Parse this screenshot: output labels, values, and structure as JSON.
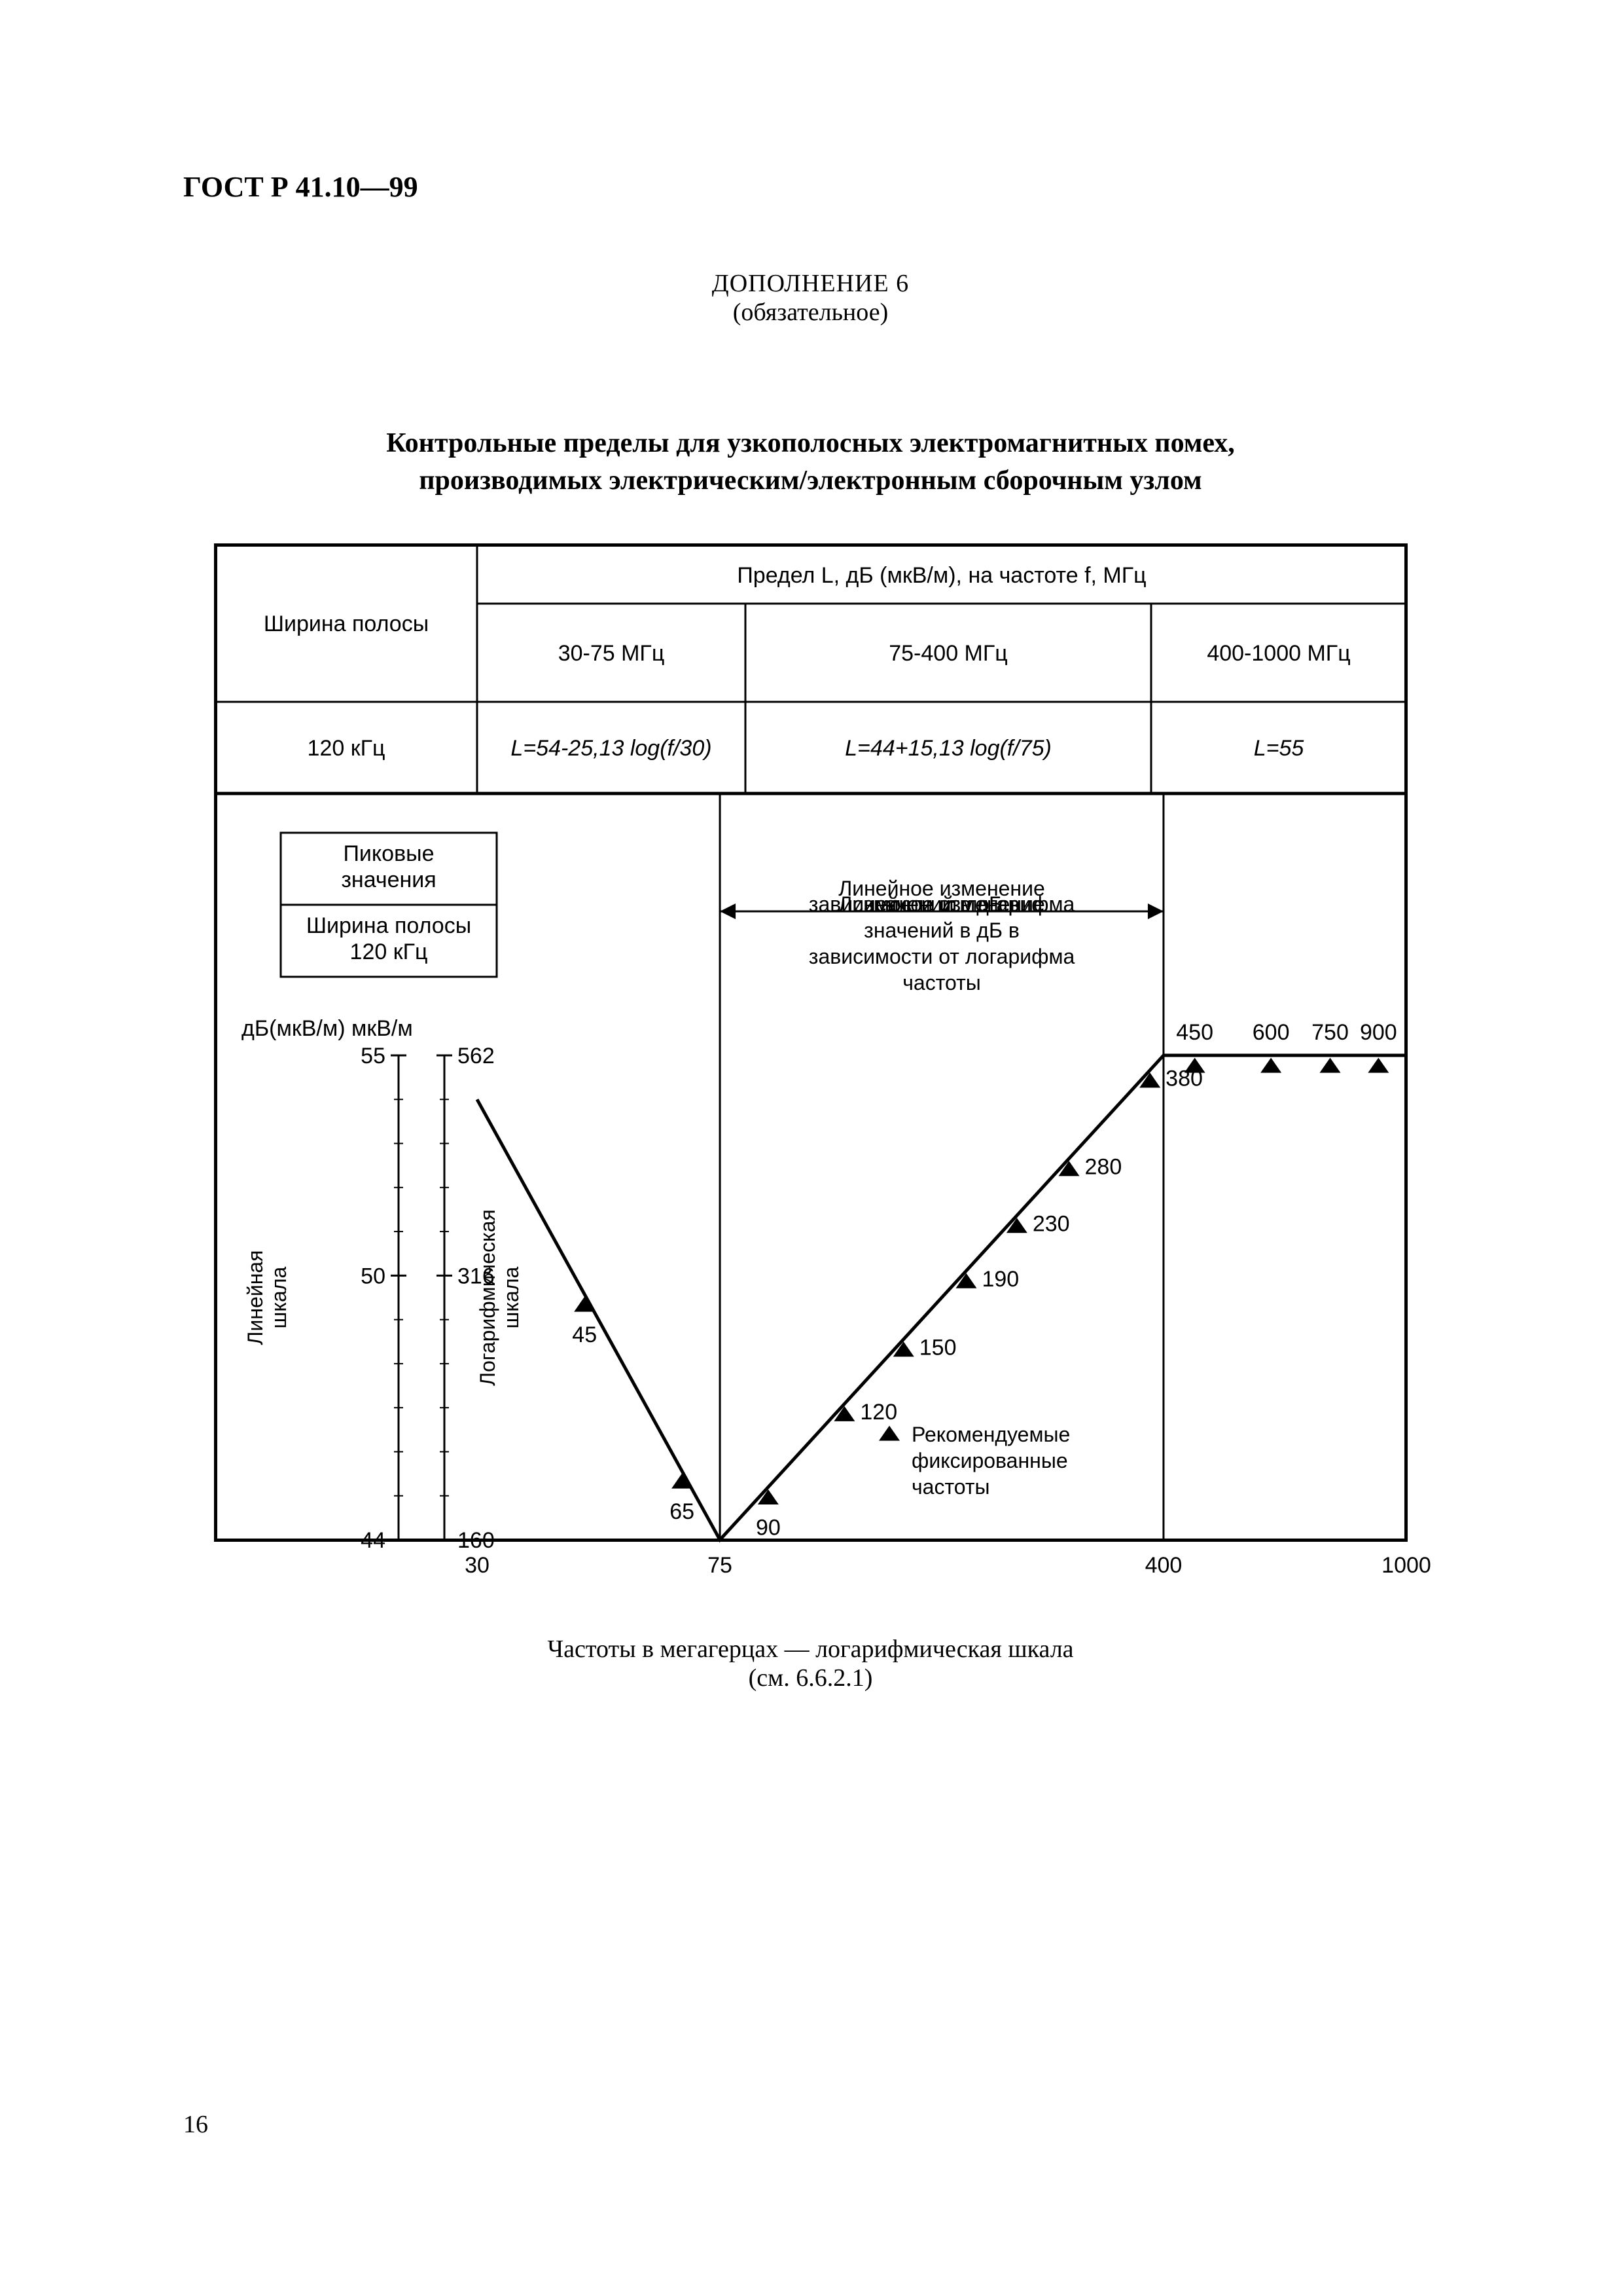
{
  "doc_id": "ГОСТ Р 41.10—99",
  "appendix_label": "ДОПОЛНЕНИЕ 6",
  "mandatory_label": "(обязательное)",
  "title_line1": "Контрольные пределы для узкополосных электромагнитных помех,",
  "title_line2": "производимых электрическим/электронным сборочным узлом",
  "caption_line1": "Частоты в мегагерцах — логарифмическая шкала",
  "caption_line2": "(см. 6.6.2.1)",
  "page_number": "16",
  "table": {
    "header_top": "Предел L, дБ (мкВ/м), на частоте f, МГц",
    "row_label": "Ширина полосы",
    "cols": [
      "30-75 МГц",
      "75-400 МГц",
      "400-1000 МГц"
    ],
    "bw_label": "120 кГц",
    "formulas": [
      "L=54-25,13 log(f/30)",
      "L=44+15,13 log(f/75)",
      "L=55"
    ]
  },
  "chart": {
    "type": "line",
    "background_color": "#ffffff",
    "line_color": "#000000",
    "line_width": 5,
    "marker_shape": "triangle",
    "marker_color": "#000000",
    "marker_size": 16,
    "font_family": "Arial, Helvetica, sans-serif",
    "box_peak": "Пиковые\nзначения",
    "box_bw": "Ширина полосы\n120 кГц",
    "axis_left_label": "дБ(мкВ/м)  мкВ/м",
    "linear_scale_label": "Линейная\nшкала",
    "log_scale_label": "Логарифмическая\nшкала",
    "lin_change_label": "Линейное  изменение\nзначений в дБ в\nзависимости от логарифма\nчастоты",
    "legend_label": "Рекомендуемые\nфиксированные\nчастоты",
    "x_axis": {
      "scale": "log",
      "min": 30,
      "max": 1000,
      "ticks": [
        30,
        75,
        400,
        1000
      ]
    },
    "y_axis": {
      "scale": "linear_dB",
      "min": 44,
      "max": 55,
      "ticks_dB": [
        44,
        50,
        55
      ],
      "ticks_uVm": [
        160,
        316,
        562
      ]
    },
    "curve": [
      {
        "f": 30,
        "L": 54
      },
      {
        "f": 75,
        "L": 44
      },
      {
        "f": 400,
        "L": 55
      },
      {
        "f": 1000,
        "L": 55
      }
    ],
    "markers": [
      {
        "f": 45,
        "label": "45"
      },
      {
        "f": 65,
        "label": "65"
      },
      {
        "f": 90,
        "label": "90"
      },
      {
        "f": 120,
        "label": "120"
      },
      {
        "f": 150,
        "label": "150"
      },
      {
        "f": 190,
        "label": "190"
      },
      {
        "f": 230,
        "label": "230"
      },
      {
        "f": 280,
        "label": "280"
      },
      {
        "f": 380,
        "label": "380"
      },
      {
        "f": 450,
        "label": "450"
      },
      {
        "f": 600,
        "label": "600"
      },
      {
        "f": 750,
        "label": "750"
      },
      {
        "f": 900,
        "label": "900"
      }
    ]
  }
}
